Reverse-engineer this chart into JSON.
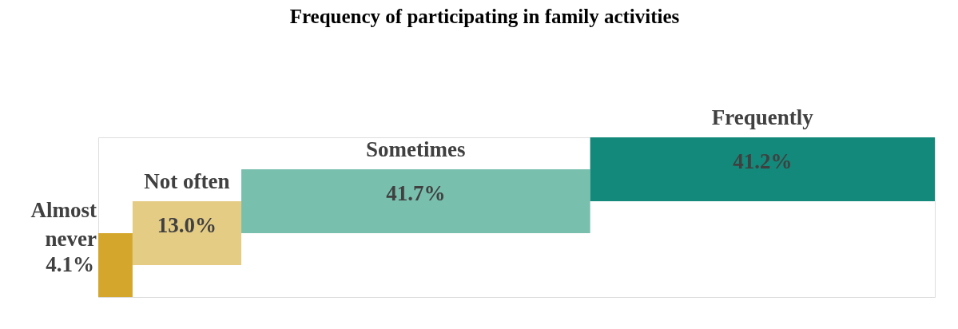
{
  "chart_data": {
    "type": "other",
    "title": "Frequency of participating in family activities",
    "categories": [
      "Almost never",
      "Not often",
      "Sometimes",
      "Frequently"
    ],
    "values": [
      4.1,
      13.0,
      41.7,
      41.2
    ],
    "value_labels": [
      "4.1%",
      "13.0%",
      "41.7%",
      "41.2%"
    ],
    "colors": [
      "#d4a72c",
      "#e5cc85",
      "#78bfae",
      "#12897a"
    ]
  }
}
